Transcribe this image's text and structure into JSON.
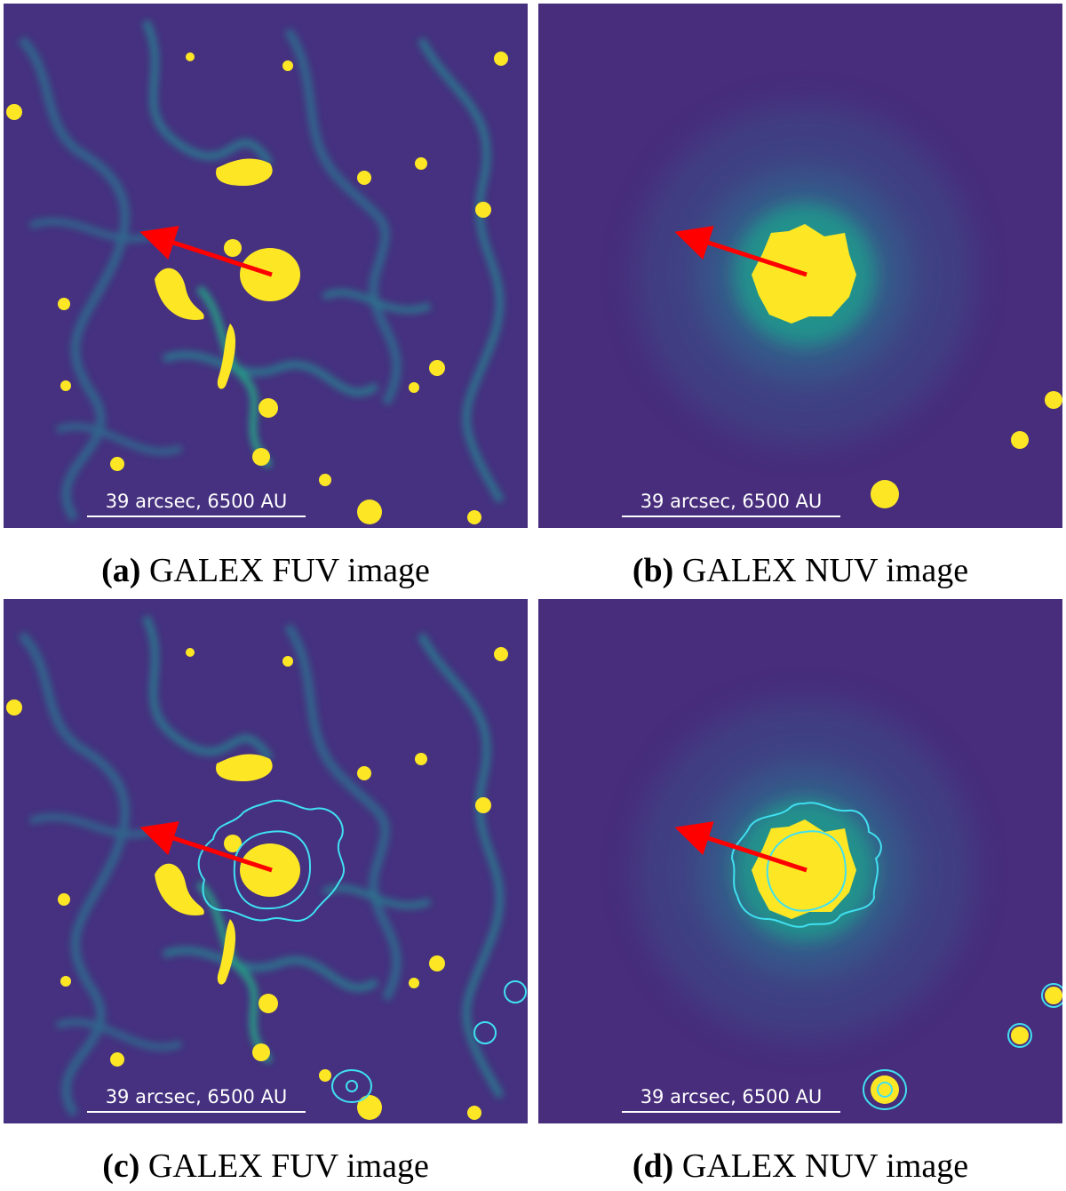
{
  "colors": {
    "background_low": "#440154",
    "mid": "#31688e",
    "teal": "#21918c",
    "bright": "#fde725",
    "arrow": "#ff0000",
    "contour": "#40e0f0"
  },
  "panels": [
    {
      "id": "a",
      "label": "(a)",
      "caption": "GALEX FUV image",
      "scalebar": "39 arcsec, 6500 AU",
      "band": "FUV",
      "contours": false
    },
    {
      "id": "b",
      "label": "(b)",
      "caption": "GALEX NUV image",
      "scalebar": "39 arcsec, 6500 AU",
      "band": "NUV",
      "contours": false
    },
    {
      "id": "c",
      "label": "(c)",
      "caption": "GALEX FUV image",
      "scalebar": "39 arcsec, 6500 AU",
      "band": "FUV",
      "contours": true
    },
    {
      "id": "d",
      "label": "(d)",
      "caption": "GALEX NUV image",
      "scalebar": "39 arcsec, 6500 AU",
      "band": "NUV",
      "contours": true
    }
  ]
}
